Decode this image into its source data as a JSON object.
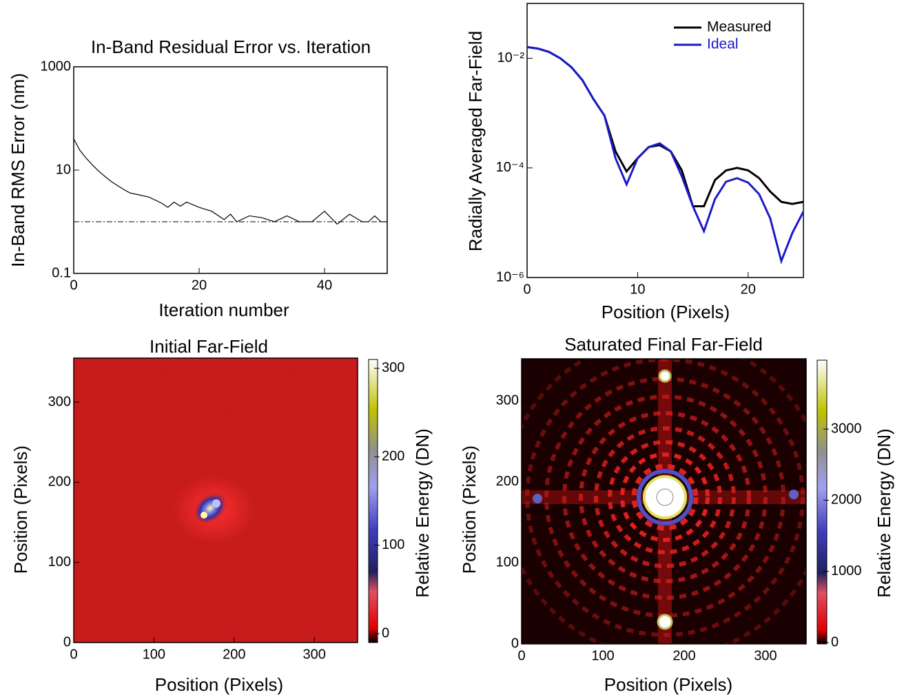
{
  "chart_data": [
    {
      "type": "line",
      "title": "In-Band Residual Error vs. Iteration",
      "xlabel": "Iteration number",
      "ylabel": "In-Band RMS Error (nm)",
      "log_y": true,
      "xlim": [
        0,
        50
      ],
      "ylim": [
        0.1,
        1000
      ],
      "xticks": [
        0,
        20,
        40
      ],
      "yticks": [
        0.1,
        10,
        1000
      ],
      "x": [
        0,
        1,
        2,
        3,
        4,
        5,
        6,
        7,
        8,
        9,
        10,
        12,
        14,
        15,
        16,
        17,
        18,
        20,
        22,
        24,
        25,
        26,
        28,
        30,
        32,
        34,
        36,
        38,
        40,
        42,
        44,
        46,
        47,
        48,
        49,
        50
      ],
      "series": [
        {
          "color": "#000000",
          "values": [
            40,
            24,
            17,
            12.5,
            9.5,
            7.5,
            6,
            5,
            4.2,
            3.6,
            3.4,
            3.0,
            2.3,
            1.9,
            2.4,
            2.0,
            2.4,
            1.9,
            1.6,
            1.1,
            1.4,
            1.0,
            1.3,
            1.2,
            1.0,
            1.3,
            1.0,
            1.0,
            1.6,
            0.9,
            1.4,
            1.0,
            1.0,
            1.3,
            1.0,
            1.0
          ]
        }
      ],
      "hline": 1
    },
    {
      "type": "line",
      "ylabel": "Radially Averaged Far-Field",
      "xlabel": "Position (Pixels)",
      "log_y": true,
      "legend": "upper right",
      "xlim": [
        0,
        25
      ],
      "ylim": [
        1e-06,
        0.1
      ],
      "xticks": [
        0,
        10,
        20
      ],
      "yticks": [
        {
          "value": 1e-06,
          "label": "10⁻⁶"
        },
        {
          "value": 0.0001,
          "label": "10⁻⁴"
        },
        {
          "value": 0.01,
          "label": "10⁻²"
        }
      ],
      "x": [
        0,
        1,
        2,
        3,
        4,
        5,
        6,
        7,
        8,
        9,
        10,
        11,
        12,
        13,
        14,
        15,
        16,
        17,
        18,
        19,
        20,
        21,
        22,
        23,
        24,
        25
      ],
      "series": [
        {
          "name": "Measured",
          "color": "#000000",
          "values": [
            0.016,
            0.015,
            0.013,
            0.01,
            0.0069,
            0.004,
            0.0018,
            0.0009,
            0.0002,
            8.6e-05,
            0.00015,
            0.00024,
            0.00026,
            0.0002,
            9e-05,
            2e-05,
            2e-05,
            6e-05,
            9e-05,
            0.0001,
            9e-05,
            6.5e-05,
            3.7e-05,
            2.4e-05,
            2.2e-05,
            2.4e-05
          ]
        },
        {
          "name": "Ideal",
          "color": "#1a1ac8",
          "values": [
            0.016,
            0.015,
            0.013,
            0.01,
            0.0069,
            0.004,
            0.0018,
            0.0009,
            0.00015,
            5e-05,
            0.00015,
            0.00024,
            0.00028,
            0.0002,
            7e-05,
            2e-05,
            7e-06,
            2.7e-05,
            5.6e-05,
            6.5e-05,
            5.4e-05,
            3.3e-05,
            1.2e-05,
            2e-06,
            6.5e-06,
            1.6e-05
          ]
        }
      ]
    },
    {
      "type": "heatmap",
      "title": "Initial Far-Field",
      "xlabel": "Position (Pixels)",
      "ylabel": "Position (Pixels)",
      "xlim": [
        0,
        354
      ],
      "ylim": [
        0,
        355
      ],
      "xticks": [
        0,
        100,
        200,
        300
      ],
      "yticks": [
        0,
        100,
        200,
        300
      ],
      "colorbar": {
        "label": "Relative Energy (DN)",
        "lim": [
          -10,
          310
        ],
        "ticks": [
          0,
          100,
          200,
          300
        ]
      }
    },
    {
      "type": "heatmap",
      "title": "Saturated Final Far-Field",
      "xlabel": "Position (Pixels)",
      "ylabel": "Position (Pixels)",
      "xlim": [
        0,
        350
      ],
      "ylim": [
        0,
        352
      ],
      "xticks": [
        0,
        100,
        200,
        300
      ],
      "yticks": [
        0,
        100,
        200,
        300
      ],
      "colorbar": {
        "label": "Relative Energy (DN)",
        "lim": [
          -19,
          3968
        ],
        "ticks": [
          0,
          1000,
          2000,
          3000
        ]
      }
    }
  ]
}
